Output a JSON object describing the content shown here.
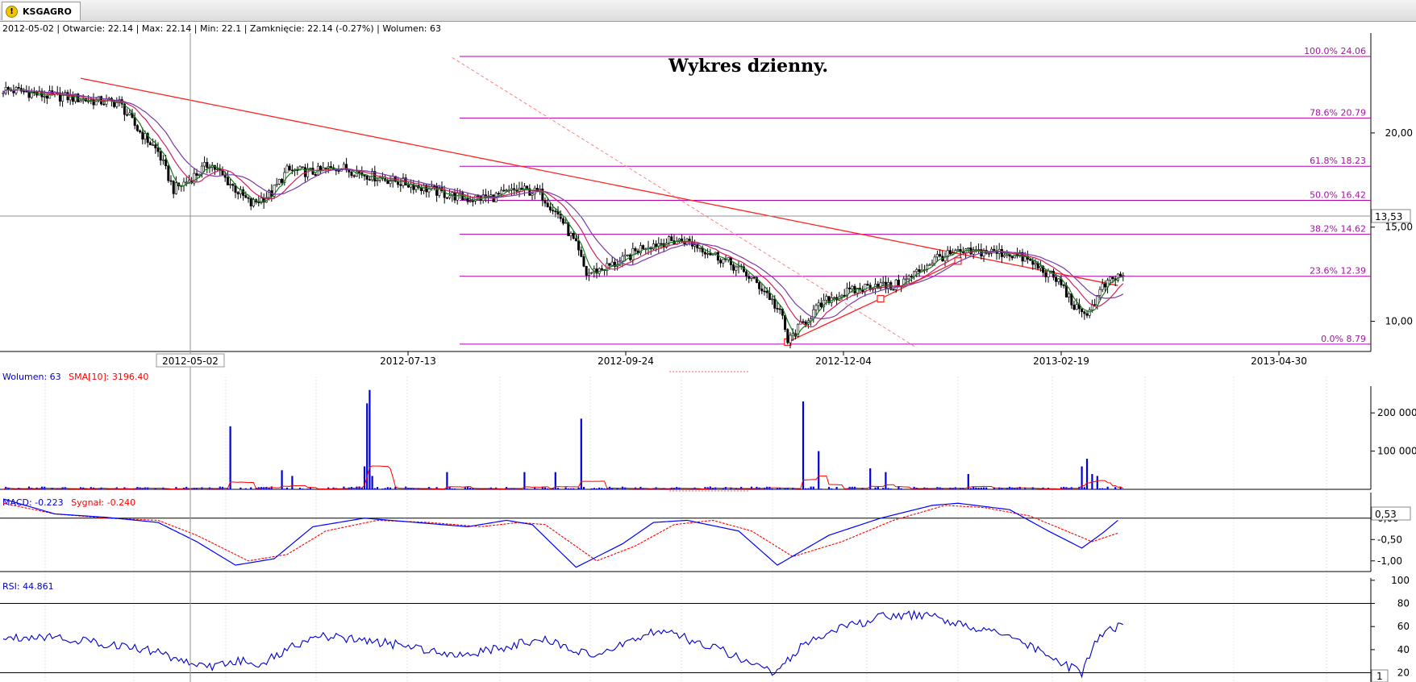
{
  "tab": {
    "label": "KSGAGRO",
    "icon": "warning-icon"
  },
  "header": {
    "info_line": "2012-05-02 | Otwarcie: 22.14 | Max: 22.14 | Min: 22.1 | Zamknięcie: 22.14 (-0.27%)  | Wolumen: 63"
  },
  "annotation": {
    "title": "Wykres dzienny."
  },
  "colors": {
    "price_candle": "#000000",
    "sma_short": "#1a7a1a",
    "sma_mid": "#d0205a",
    "sma_long": "#7a3aa8",
    "trend": "#ff2020",
    "fib": "#b000b0",
    "volume": "#0000dd",
    "volume_sma": "#ff0000",
    "macd": "#0000ff",
    "signal": "#ff0000",
    "rsi": "#0000cc"
  },
  "chart_data": [
    {
      "type": "candlestick",
      "name": "price",
      "x_ticks": [
        "2012-05-02",
        "2012-07-13",
        "2012-09-24",
        "2012-12-04",
        "2013-02-19",
        "2013-04-30"
      ],
      "y_ticks": [
        "20,00",
        "15,00",
        "10,00"
      ],
      "ylim": [
        8.4,
        25.3
      ],
      "crosshair_value": "13,53",
      "close_path": [
        [
          0,
          22.3
        ],
        [
          8,
          22.2
        ],
        [
          15,
          22.0
        ],
        [
          25,
          21.9
        ],
        [
          35,
          21.7
        ],
        [
          45,
          21.6
        ],
        [
          52,
          20.2
        ],
        [
          60,
          19.0
        ],
        [
          66,
          17.0
        ],
        [
          72,
          17.5
        ],
        [
          80,
          18.4
        ],
        [
          88,
          17.3
        ],
        [
          96,
          16.2
        ],
        [
          104,
          16.8
        ],
        [
          110,
          18.0
        ],
        [
          120,
          17.9
        ],
        [
          130,
          18.2
        ],
        [
          140,
          17.8
        ],
        [
          150,
          17.5
        ],
        [
          160,
          17.2
        ],
        [
          170,
          16.8
        ],
        [
          180,
          16.5
        ],
        [
          190,
          16.6
        ],
        [
          200,
          17.0
        ],
        [
          208,
          16.8
        ],
        [
          216,
          15.5
        ],
        [
          222,
          14.0
        ],
        [
          226,
          12.5
        ],
        [
          232,
          12.8
        ],
        [
          240,
          13.2
        ],
        [
          248,
          14.0
        ],
        [
          256,
          14.2
        ],
        [
          264,
          14.3
        ],
        [
          272,
          13.8
        ],
        [
          280,
          13.2
        ],
        [
          288,
          12.5
        ],
        [
          296,
          11.5
        ],
        [
          302,
          10.2
        ],
        [
          304,
          8.9
        ],
        [
          308,
          9.6
        ],
        [
          314,
          10.5
        ],
        [
          320,
          11.2
        ],
        [
          326,
          11.5
        ],
        [
          332,
          11.7
        ],
        [
          338,
          12.0
        ],
        [
          344,
          11.8
        ],
        [
          350,
          12.2
        ],
        [
          356,
          12.8
        ],
        [
          362,
          13.4
        ],
        [
          370,
          13.6
        ],
        [
          380,
          13.7
        ],
        [
          390,
          13.6
        ],
        [
          396,
          13.3
        ],
        [
          402,
          12.8
        ],
        [
          410,
          12.0
        ],
        [
          414,
          11.0
        ],
        [
          418,
          10.3
        ],
        [
          422,
          10.8
        ],
        [
          426,
          11.8
        ],
        [
          430,
          12.2
        ],
        [
          434,
          12.5
        ]
      ],
      "fibonacci": [
        {
          "label": "100.0% 24.06",
          "value": 24.06
        },
        {
          "label": "78.6% 20.79",
          "value": 20.79
        },
        {
          "label": "61.8% 18.23",
          "value": 18.23
        },
        {
          "label": "50.0% 16.42",
          "value": 16.42
        },
        {
          "label": "38.2% 14.62",
          "value": 14.62
        },
        {
          "label": "23.6% 12.39",
          "value": 12.39
        },
        {
          "label": "0.0% 8.79",
          "value": 8.79
        }
      ]
    },
    {
      "type": "bar",
      "name": "volume",
      "legend": "Wolumen: 63",
      "legend_sma": "SMA[10]: 3196.40",
      "y_ticks": [
        "200 000",
        "100 000"
      ],
      "ylim": [
        0,
        270000
      ],
      "spikes": [
        {
          "i": 88,
          "v": 165000
        },
        {
          "i": 140,
          "v": 60000
        },
        {
          "i": 141,
          "v": 225000
        },
        {
          "i": 142,
          "v": 260000
        },
        {
          "i": 143,
          "v": 35000
        },
        {
          "i": 108,
          "v": 50000
        },
        {
          "i": 112,
          "v": 35000
        },
        {
          "i": 172,
          "v": 45000
        },
        {
          "i": 202,
          "v": 45000
        },
        {
          "i": 214,
          "v": 45000
        },
        {
          "i": 224,
          "v": 185000
        },
        {
          "i": 310,
          "v": 230000
        },
        {
          "i": 316,
          "v": 100000
        },
        {
          "i": 336,
          "v": 55000
        },
        {
          "i": 342,
          "v": 45000
        },
        {
          "i": 374,
          "v": 40000
        },
        {
          "i": 418,
          "v": 60000
        },
        {
          "i": 420,
          "v": 80000
        },
        {
          "i": 422,
          "v": 40000
        },
        {
          "i": 424,
          "v": 35000
        }
      ]
    },
    {
      "type": "line",
      "name": "macd",
      "legend_macd": "MACD: -0.223",
      "legend_signal": "Sygnał: -0.240",
      "y_ticks": [
        "0,00",
        "-0,50",
        "-1,00"
      ],
      "ylim": [
        -1.25,
        0.6
      ],
      "crosshair_value": "0,53",
      "macd_path": [
        [
          0,
          0.45
        ],
        [
          20,
          0.1
        ],
        [
          40,
          0.02
        ],
        [
          60,
          -0.1
        ],
        [
          75,
          -0.55
        ],
        [
          90,
          -1.1
        ],
        [
          105,
          -0.95
        ],
        [
          120,
          -0.2
        ],
        [
          140,
          0.0
        ],
        [
          160,
          -0.1
        ],
        [
          180,
          -0.2
        ],
        [
          195,
          -0.05
        ],
        [
          205,
          -0.15
        ],
        [
          222,
          -1.15
        ],
        [
          240,
          -0.6
        ],
        [
          252,
          -0.1
        ],
        [
          265,
          -0.05
        ],
        [
          285,
          -0.3
        ],
        [
          300,
          -1.1
        ],
        [
          320,
          -0.4
        ],
        [
          340,
          0.0
        ],
        [
          360,
          0.3
        ],
        [
          370,
          0.35
        ],
        [
          390,
          0.2
        ],
        [
          405,
          -0.3
        ],
        [
          418,
          -0.7
        ],
        [
          426,
          -0.35
        ],
        [
          432,
          -0.05
        ]
      ],
      "signal_path": [
        [
          0,
          0.35
        ],
        [
          20,
          0.1
        ],
        [
          40,
          0.0
        ],
        [
          60,
          -0.05
        ],
        [
          75,
          -0.4
        ],
        [
          95,
          -1.0
        ],
        [
          110,
          -0.85
        ],
        [
          125,
          -0.3
        ],
        [
          145,
          -0.05
        ],
        [
          165,
          -0.1
        ],
        [
          185,
          -0.2
        ],
        [
          200,
          -0.1
        ],
        [
          210,
          -0.15
        ],
        [
          230,
          -1.0
        ],
        [
          245,
          -0.65
        ],
        [
          260,
          -0.15
        ],
        [
          275,
          -0.05
        ],
        [
          290,
          -0.3
        ],
        [
          306,
          -0.9
        ],
        [
          325,
          -0.55
        ],
        [
          345,
          -0.05
        ],
        [
          365,
          0.3
        ],
        [
          380,
          0.25
        ],
        [
          398,
          0.05
        ],
        [
          412,
          -0.3
        ],
        [
          422,
          -0.55
        ],
        [
          432,
          -0.35
        ]
      ]
    },
    {
      "type": "line",
      "name": "rsi",
      "legend": "RSI: 44.861",
      "y_ticks": [
        "100",
        "80",
        "60",
        "40",
        "20"
      ],
      "ylim": [
        12,
        102
      ],
      "corner_value": "1",
      "rsi_path": [
        [
          0,
          50
        ],
        [
          15,
          52
        ],
        [
          30,
          48
        ],
        [
          40,
          45
        ],
        [
          50,
          42
        ],
        [
          60,
          38
        ],
        [
          70,
          30
        ],
        [
          80,
          25
        ],
        [
          90,
          30
        ],
        [
          100,
          28
        ],
        [
          110,
          40
        ],
        [
          120,
          52
        ],
        [
          130,
          50
        ],
        [
          140,
          48
        ],
        [
          150,
          45
        ],
        [
          160,
          42
        ],
        [
          170,
          38
        ],
        [
          180,
          36
        ],
        [
          190,
          40
        ],
        [
          200,
          45
        ],
        [
          210,
          48
        ],
        [
          220,
          42
        ],
        [
          230,
          32
        ],
        [
          240,
          45
        ],
        [
          250,
          55
        ],
        [
          260,
          54
        ],
        [
          270,
          45
        ],
        [
          280,
          38
        ],
        [
          290,
          28
        ],
        [
          300,
          20
        ],
        [
          310,
          45
        ],
        [
          320,
          55
        ],
        [
          330,
          62
        ],
        [
          340,
          68
        ],
        [
          350,
          70
        ],
        [
          360,
          68
        ],
        [
          370,
          62
        ],
        [
          380,
          58
        ],
        [
          390,
          52
        ],
        [
          400,
          40
        ],
        [
          410,
          28
        ],
        [
          418,
          20
        ],
        [
          424,
          50
        ],
        [
          434,
          62
        ]
      ]
    }
  ]
}
